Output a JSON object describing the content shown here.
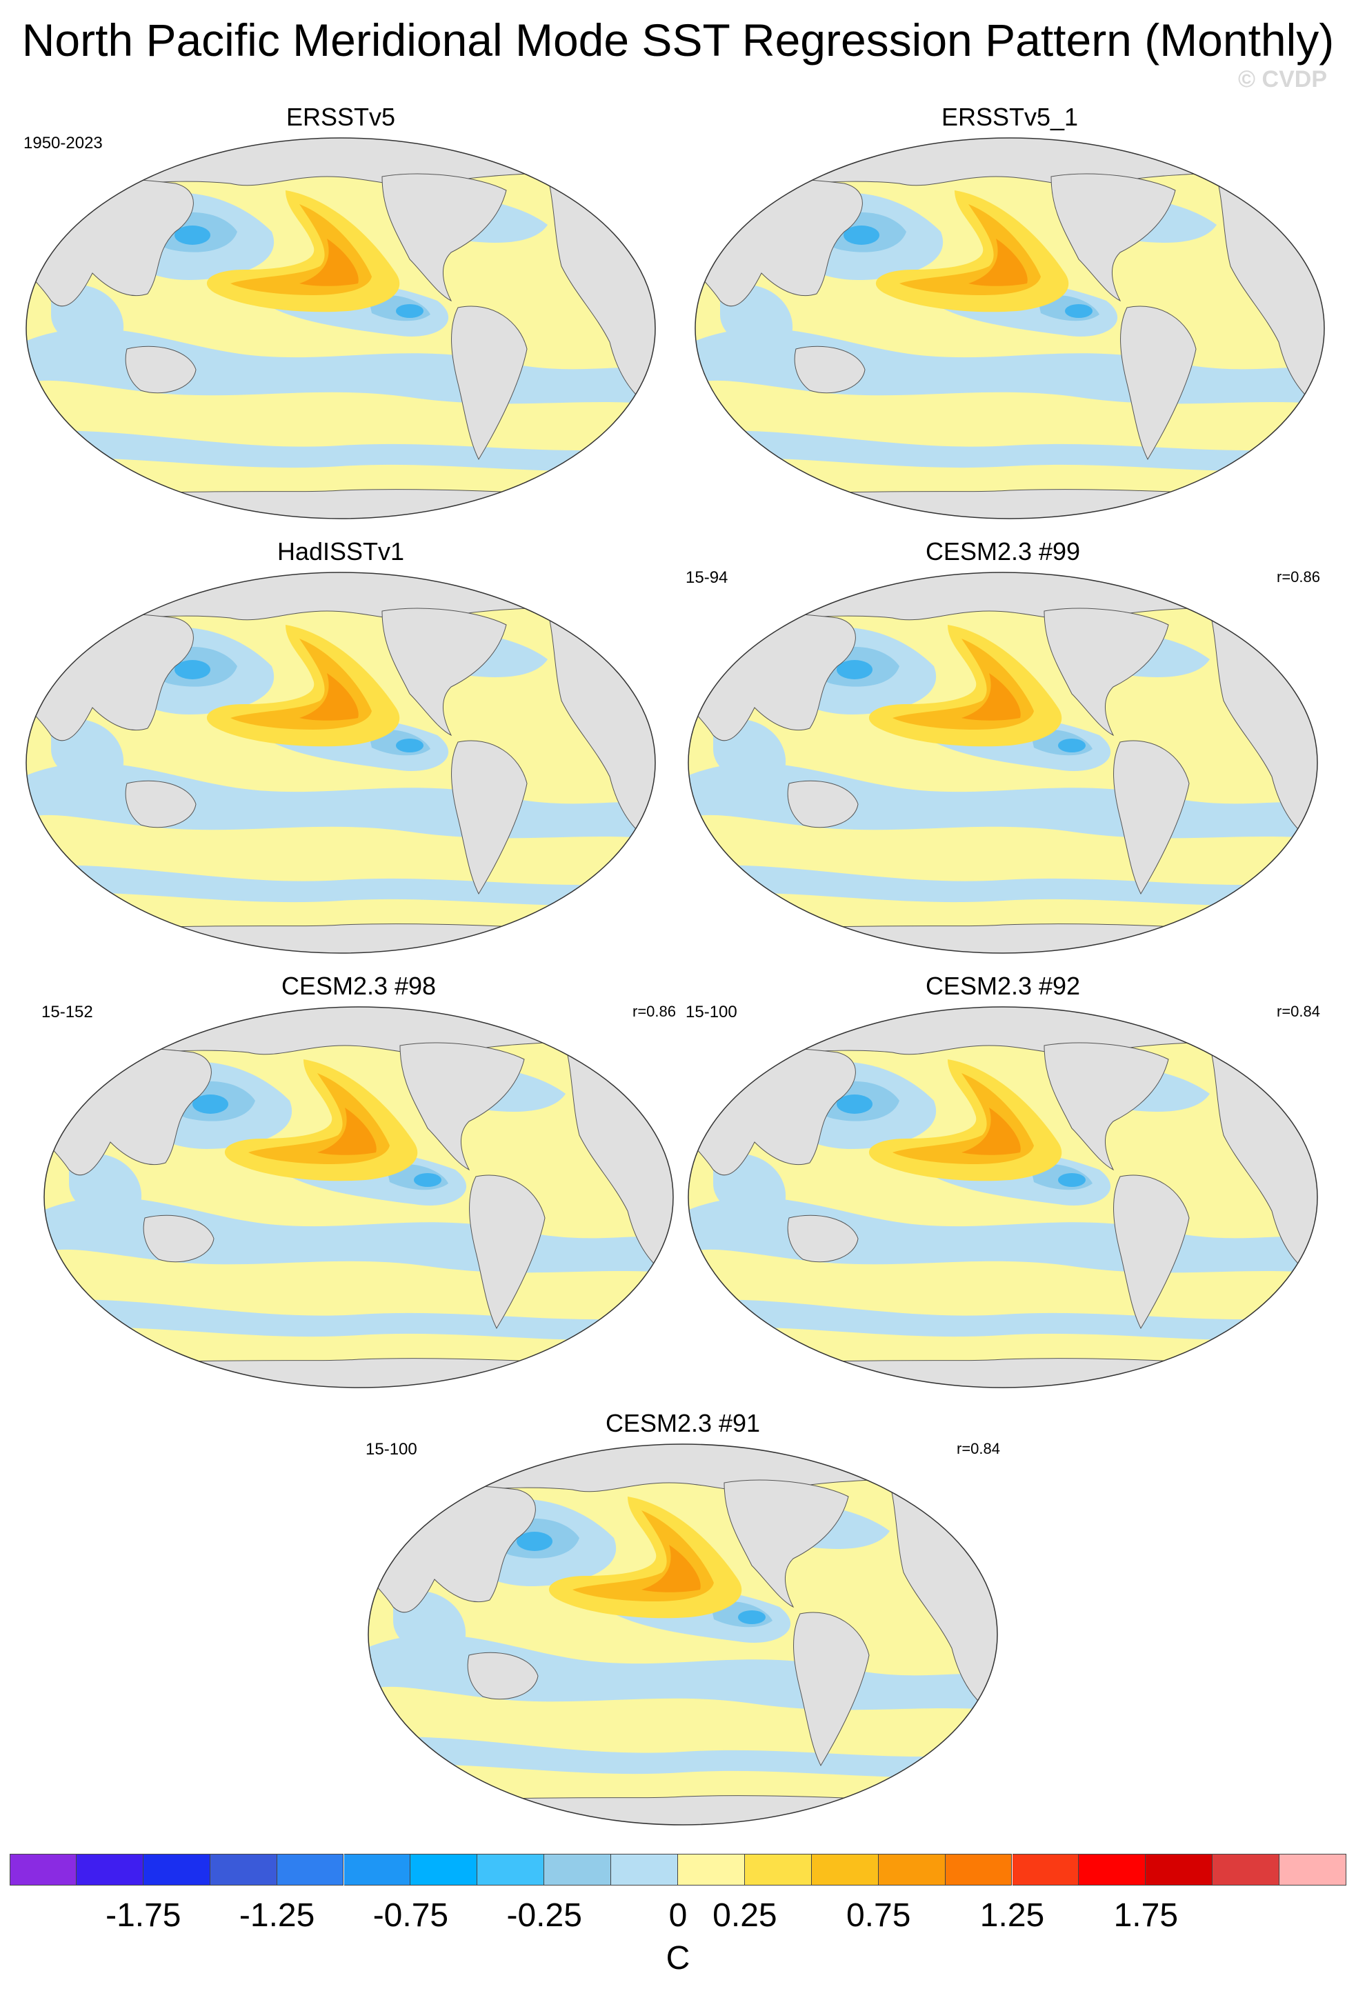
{
  "title": "North Pacific Meridional Mode SST Regression Pattern (Monthly)",
  "copyright": "© CVDP",
  "colors": {
    "land": "#e0e0e0",
    "coast": "#555555",
    "light_blue": "#b8def2",
    "mid_blue": "#8ecbeb",
    "blue": "#3fb2ee",
    "light_yellow": "#fbf7a0",
    "yellow": "#fde047",
    "gold": "#fbbc1e",
    "orange": "#f99b0c"
  },
  "panels": [
    {
      "title": "ERSSTv5",
      "left_note": "1950-2023",
      "right_note": ""
    },
    {
      "title": "ERSSTv5_1",
      "left_note": "",
      "right_note": ""
    },
    {
      "title": "HadISSTv1",
      "left_note": "",
      "right_note": ""
    },
    {
      "title": "CESM2.3 #99",
      "left_note": "15-94",
      "right_note": "r=0.86"
    },
    {
      "title": "CESM2.3 #98",
      "left_note": "15-152",
      "right_note": "r=0.86"
    },
    {
      "title": "CESM2.3 #92",
      "left_note": "15-100",
      "right_note": "r=0.84"
    },
    {
      "title": "CESM2.3 #91",
      "left_note": "15-100",
      "right_note": "r=0.84"
    }
  ],
  "colorbar": {
    "units": "C",
    "colors": [
      "#8a2be2",
      "#3f1ef0",
      "#1a2ff0",
      "#3a5ad9",
      "#2f7ff0",
      "#1e96f5",
      "#00b0ff",
      "#3fc2fb",
      "#93cce9",
      "#b6def3",
      "#fff7a0",
      "#fde047",
      "#fbbf1a",
      "#fa9b0a",
      "#fb7a05",
      "#fa3a14",
      "#ff0000",
      "#d60000",
      "#dd3c3c",
      "#ffb2b2"
    ],
    "tick_labels": [
      "-1.75",
      "-1.25",
      "-0.75",
      "-0.25",
      "0",
      "0.25",
      "0.75",
      "1.25",
      "1.75"
    ]
  }
}
